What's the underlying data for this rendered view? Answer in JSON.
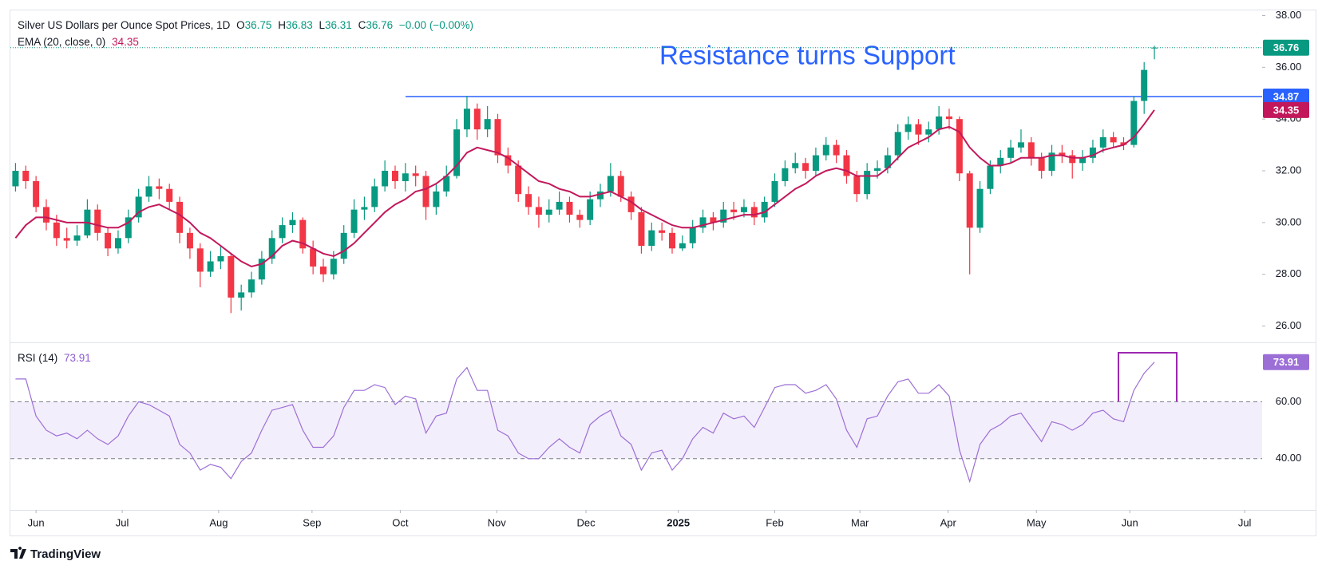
{
  "chart_data": [
    {
      "type": "candlestick",
      "title": "Silver US Dollars per Ounce Spot Prices, 1D",
      "ohlc_letters": [
        "O",
        "H",
        "L",
        "C"
      ],
      "change": "−0.00 (−0.00%)",
      "colors": {
        "up": "#089981",
        "down": "#f23645"
      },
      "candles": [
        [
          31.4,
          32.3,
          31.2,
          32.0
        ],
        [
          32.0,
          32.2,
          31.3,
          31.6
        ],
        [
          31.6,
          31.8,
          30.4,
          30.6
        ],
        [
          30.6,
          30.9,
          29.7,
          30.0
        ],
        [
          30.0,
          30.3,
          29.1,
          29.4
        ],
        [
          29.4,
          29.8,
          29.0,
          29.3
        ],
        [
          29.3,
          29.9,
          29.1,
          29.5
        ],
        [
          29.5,
          30.9,
          29.4,
          30.5
        ],
        [
          30.5,
          30.7,
          29.3,
          29.6
        ],
        [
          29.6,
          29.8,
          28.7,
          29.0
        ],
        [
          29.0,
          29.7,
          28.8,
          29.4
        ],
        [
          29.4,
          30.5,
          29.2,
          30.2
        ],
        [
          30.2,
          31.3,
          30.0,
          31.0
        ],
        [
          31.0,
          31.8,
          30.8,
          31.4
        ],
        [
          31.4,
          31.7,
          30.9,
          31.3
        ],
        [
          31.3,
          31.5,
          30.5,
          30.8
        ],
        [
          30.8,
          31.0,
          29.2,
          29.6
        ],
        [
          29.6,
          29.8,
          28.6,
          29.0
        ],
        [
          29.0,
          29.2,
          27.5,
          28.1
        ],
        [
          28.1,
          28.9,
          27.9,
          28.5
        ],
        [
          28.5,
          29.1,
          28.2,
          28.7
        ],
        [
          28.7,
          28.8,
          26.5,
          27.1
        ],
        [
          27.1,
          27.6,
          26.6,
          27.3
        ],
        [
          27.3,
          28.1,
          27.1,
          27.8
        ],
        [
          27.8,
          28.9,
          27.6,
          28.6
        ],
        [
          28.6,
          29.7,
          28.4,
          29.4
        ],
        [
          29.4,
          30.2,
          29.2,
          29.9
        ],
        [
          29.9,
          30.4,
          29.6,
          30.1
        ],
        [
          30.1,
          30.2,
          28.8,
          29.0
        ],
        [
          29.0,
          29.3,
          28.0,
          28.3
        ],
        [
          28.3,
          28.6,
          27.7,
          28.0
        ],
        [
          28.0,
          28.9,
          27.8,
          28.6
        ],
        [
          28.6,
          29.9,
          28.4,
          29.6
        ],
        [
          29.6,
          30.9,
          29.4,
          30.5
        ],
        [
          30.5,
          31.0,
          30.1,
          30.6
        ],
        [
          30.6,
          31.7,
          30.4,
          31.4
        ],
        [
          31.4,
          32.4,
          31.2,
          32.0
        ],
        [
          32.0,
          32.2,
          31.3,
          31.6
        ],
        [
          31.6,
          32.3,
          31.2,
          31.9
        ],
        [
          31.9,
          32.2,
          31.4,
          31.8
        ],
        [
          31.8,
          32.0,
          30.1,
          30.6
        ],
        [
          30.6,
          31.5,
          30.3,
          31.2
        ],
        [
          31.2,
          32.2,
          31.0,
          31.8
        ],
        [
          31.8,
          34.0,
          31.7,
          33.6
        ],
        [
          33.6,
          34.9,
          33.3,
          34.4
        ],
        [
          34.4,
          34.6,
          33.2,
          33.6
        ],
        [
          33.6,
          34.5,
          33.3,
          34.0
        ],
        [
          34.0,
          34.2,
          32.3,
          32.6
        ],
        [
          32.6,
          32.9,
          31.9,
          32.2
        ],
        [
          32.2,
          32.4,
          30.8,
          31.1
        ],
        [
          31.1,
          31.4,
          30.3,
          30.6
        ],
        [
          30.6,
          31.0,
          29.8,
          30.3
        ],
        [
          30.3,
          30.9,
          30.0,
          30.5
        ],
        [
          30.5,
          31.2,
          30.3,
          30.8
        ],
        [
          30.8,
          31.0,
          30.0,
          30.3
        ],
        [
          30.3,
          30.5,
          29.8,
          30.1
        ],
        [
          30.1,
          31.2,
          29.9,
          30.9
        ],
        [
          30.9,
          31.5,
          30.6,
          31.2
        ],
        [
          31.2,
          32.3,
          31.0,
          31.8
        ],
        [
          31.8,
          32.0,
          30.8,
          31.0
        ],
        [
          31.0,
          31.2,
          30.1,
          30.4
        ],
        [
          30.4,
          30.6,
          28.8,
          29.1
        ],
        [
          29.1,
          30.0,
          28.9,
          29.7
        ],
        [
          29.7,
          30.0,
          29.3,
          29.6
        ],
        [
          29.6,
          29.8,
          28.8,
          29.0
        ],
        [
          29.0,
          29.5,
          28.9,
          29.2
        ],
        [
          29.2,
          30.1,
          29.0,
          29.8
        ],
        [
          29.8,
          30.5,
          29.6,
          30.2
        ],
        [
          30.2,
          30.4,
          29.7,
          30.0
        ],
        [
          30.0,
          30.8,
          29.8,
          30.5
        ],
        [
          30.5,
          30.8,
          30.1,
          30.4
        ],
        [
          30.4,
          30.9,
          30.2,
          30.6
        ],
        [
          30.6,
          30.8,
          29.9,
          30.2
        ],
        [
          30.2,
          31.0,
          30.0,
          30.8
        ],
        [
          30.8,
          31.9,
          30.6,
          31.6
        ],
        [
          31.6,
          32.4,
          31.4,
          32.1
        ],
        [
          32.1,
          32.7,
          31.9,
          32.3
        ],
        [
          32.3,
          32.5,
          31.7,
          32.0
        ],
        [
          32.0,
          32.9,
          31.8,
          32.6
        ],
        [
          32.6,
          33.3,
          32.4,
          33.0
        ],
        [
          33.0,
          33.2,
          32.3,
          32.6
        ],
        [
          32.6,
          32.8,
          31.5,
          31.8
        ],
        [
          31.8,
          32.0,
          30.8,
          31.1
        ],
        [
          31.1,
          32.3,
          30.9,
          32.0
        ],
        [
          32.0,
          32.4,
          31.7,
          32.1
        ],
        [
          32.1,
          32.9,
          31.9,
          32.6
        ],
        [
          32.6,
          33.8,
          32.4,
          33.5
        ],
        [
          33.5,
          34.1,
          33.2,
          33.8
        ],
        [
          33.8,
          34.0,
          33.0,
          33.4
        ],
        [
          33.4,
          33.9,
          33.1,
          33.6
        ],
        [
          33.6,
          34.5,
          33.4,
          34.1
        ],
        [
          34.1,
          34.4,
          33.6,
          34.0
        ],
        [
          34.0,
          34.1,
          31.6,
          31.9
        ],
        [
          31.9,
          32.0,
          28.0,
          29.8
        ],
        [
          29.8,
          31.6,
          29.6,
          31.3
        ],
        [
          31.3,
          32.4,
          31.1,
          32.2
        ],
        [
          32.2,
          32.8,
          31.9,
          32.5
        ],
        [
          32.5,
          33.2,
          32.3,
          32.9
        ],
        [
          32.9,
          33.6,
          32.7,
          33.1
        ],
        [
          33.1,
          33.3,
          32.2,
          32.5
        ],
        [
          32.5,
          32.7,
          31.7,
          32.0
        ],
        [
          32.0,
          33.0,
          31.8,
          32.7
        ],
        [
          32.7,
          33.0,
          32.3,
          32.6
        ],
        [
          32.6,
          32.8,
          31.7,
          32.3
        ],
        [
          32.3,
          32.8,
          32.0,
          32.5
        ],
        [
          32.5,
          33.2,
          32.3,
          32.9
        ],
        [
          32.9,
          33.6,
          32.7,
          33.3
        ],
        [
          33.3,
          33.5,
          32.9,
          33.1
        ],
        [
          33.1,
          33.3,
          32.8,
          33.0
        ],
        [
          33.0,
          34.9,
          32.9,
          34.7
        ],
        [
          34.7,
          36.2,
          34.2,
          35.9
        ],
        [
          36.75,
          36.83,
          36.31,
          36.76
        ]
      ],
      "series": [
        {
          "name": "EMA (20, close, 0)",
          "color": "#c2185b",
          "values": [
            29.4,
            29.9,
            30.2,
            30.2,
            30.1,
            30.0,
            30.0,
            30.0,
            29.9,
            29.8,
            29.8,
            30.0,
            30.4,
            30.6,
            30.7,
            30.5,
            30.3,
            30.0,
            29.6,
            29.4,
            29.1,
            28.8,
            28.5,
            28.3,
            28.4,
            28.7,
            29.1,
            29.3,
            29.2,
            29.0,
            28.8,
            28.7,
            28.9,
            29.2,
            29.6,
            30.0,
            30.4,
            30.7,
            30.9,
            31.2,
            31.3,
            31.5,
            31.8,
            32.2,
            32.7,
            32.9,
            32.8,
            32.7,
            32.5,
            32.2,
            31.9,
            31.6,
            31.5,
            31.3,
            31.2,
            31.0,
            31.0,
            31.1,
            31.2,
            31.0,
            30.8,
            30.5,
            30.3,
            30.1,
            29.9,
            29.8,
            29.8,
            29.9,
            30.0,
            30.1,
            30.2,
            30.3,
            30.3,
            30.4,
            30.7,
            31.0,
            31.3,
            31.5,
            31.8,
            32.0,
            32.1,
            32.0,
            31.8,
            31.8,
            31.8,
            32.1,
            32.5,
            32.9,
            33.1,
            33.3,
            33.6,
            33.7,
            33.5,
            32.9,
            32.5,
            32.2,
            32.2,
            32.3,
            32.5,
            32.5,
            32.5,
            32.6,
            32.6,
            32.5,
            32.5,
            32.6,
            32.8,
            32.9,
            33.0,
            33.3,
            33.8,
            34.35
          ]
        }
      ],
      "resistance": {
        "value": 34.87,
        "color": "#2962ff"
      },
      "annotation": "Resistance turns Support",
      "xlim": [
        -0.5,
        121.5
      ],
      "xticks": [
        {
          "value": 2,
          "label": "Jun"
        },
        {
          "value": 10.4,
          "label": "Jul"
        },
        {
          "value": 19.8,
          "label": "Aug"
        },
        {
          "value": 28.9,
          "label": "Sep"
        },
        {
          "value": 37.5,
          "label": "Oct"
        },
        {
          "value": 46.9,
          "label": "Nov"
        },
        {
          "value": 55.6,
          "label": "Dec"
        },
        {
          "value": 64.6,
          "label": "2025"
        },
        {
          "value": 74,
          "label": "Feb"
        },
        {
          "value": 82.3,
          "label": "Mar"
        },
        {
          "value": 90.9,
          "label": "Apr"
        },
        {
          "value": 99.5,
          "label": "May"
        },
        {
          "value": 108.6,
          "label": "Jun"
        },
        {
          "value": 119.8,
          "label": "Jul"
        }
      ],
      "ylim": [
        25.4,
        38.2
      ],
      "yticks": [
        {
          "value": 26,
          "label": "26.00"
        },
        {
          "value": 28,
          "label": "28.00"
        },
        {
          "value": 30,
          "label": "30.00"
        },
        {
          "value": 32,
          "label": "32.00"
        },
        {
          "value": 34,
          "label": "34.00"
        },
        {
          "value": 36,
          "label": "36.00"
        },
        {
          "value": 38,
          "label": "38.00"
        }
      ]
    },
    {
      "type": "line",
      "series": [
        {
          "name": "RSI (14)",
          "color": "#9c6fd6",
          "values": [
            68,
            68,
            55,
            50,
            48,
            49,
            47,
            50,
            47,
            45,
            48,
            55,
            60,
            59,
            57,
            55,
            45,
            42,
            36,
            38,
            37,
            33,
            39,
            42,
            50,
            57,
            58,
            59,
            50,
            44,
            44,
            48,
            58,
            64,
            64,
            66,
            65,
            59,
            62,
            61,
            49,
            55,
            56,
            68,
            72,
            64,
            64,
            50,
            48,
            42,
            40,
            40,
            44,
            47,
            44,
            42,
            52,
            55,
            57,
            48,
            45,
            36,
            42,
            43,
            36,
            40,
            47,
            51,
            49,
            56,
            54,
            55,
            51,
            58,
            65,
            66,
            66,
            63,
            64,
            66,
            61,
            50,
            44,
            54,
            55,
            62,
            67,
            68,
            63,
            63,
            66,
            62,
            43,
            32,
            45,
            50,
            52,
            55,
            56,
            51,
            46,
            53,
            52,
            50,
            52,
            56,
            57,
            54,
            53,
            64,
            70,
            73.91
          ]
        }
      ],
      "band_color": "#f3eefb",
      "ylim": [
        22,
        80.3
      ],
      "yticks": [
        {
          "value": 40,
          "label": "40.00"
        },
        {
          "value": 60,
          "label": "60.00"
        }
      ]
    }
  ],
  "brand": "TradingView"
}
